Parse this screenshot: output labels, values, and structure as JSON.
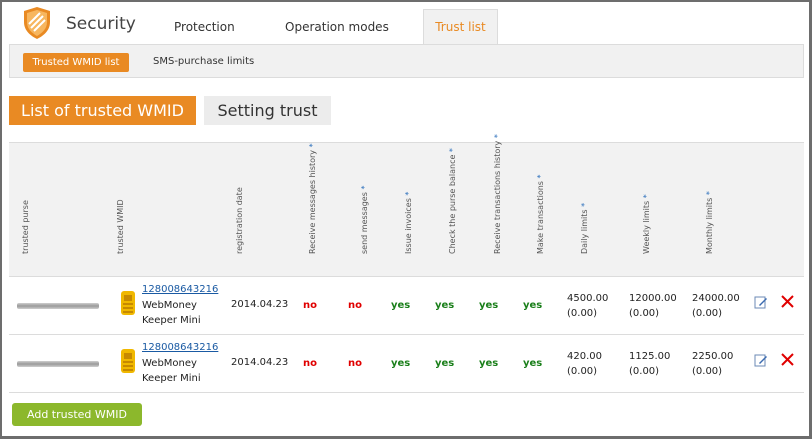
{
  "header": {
    "title": "Security",
    "tabs": [
      {
        "label": "Protection"
      },
      {
        "label": "Operation modes"
      },
      {
        "label": "Trust list"
      }
    ]
  },
  "subnav": {
    "items": [
      {
        "label": "Trusted WMID list"
      },
      {
        "label": "SMS-purchase limits"
      }
    ]
  },
  "section_buttons": {
    "list": "List of trusted WMID",
    "setting": "Setting trust"
  },
  "table": {
    "columns": {
      "trusted_purse": "trusted purse",
      "trusted_wmid": "trusted WMID",
      "registration_date": "registration date",
      "receive_messages": "Receive messages history",
      "send_messages": "send messages",
      "issue_invoices": "Issue invoices",
      "check_balance": "Check the purse balance",
      "receive_transactions": "Receive transactions history",
      "make_transactions": "Make transactions",
      "daily_limits": "Daily limits",
      "weekly_limits": "Weekly limits",
      "monthly_limits": "Monthly limits"
    },
    "star": "*",
    "rows": [
      {
        "wmid": "128008643216",
        "keeper": "WebMoney Keeper Mini",
        "reg_date": "2014.04.23",
        "receive_messages": "no",
        "send_messages": "no",
        "issue_invoices": "yes",
        "check_balance": "yes",
        "receive_transactions": "yes",
        "make_transactions": "yes",
        "daily": "4500.00",
        "daily_used": "(0.00)",
        "weekly": "12000.00",
        "weekly_used": "(0.00)",
        "monthly": "24000.00",
        "monthly_used": "(0.00)"
      },
      {
        "wmid": "128008643216",
        "keeper": "WebMoney Keeper Mini",
        "reg_date": "2014.04.23",
        "receive_messages": "no",
        "send_messages": "no",
        "issue_invoices": "yes",
        "check_balance": "yes",
        "receive_transactions": "yes",
        "make_transactions": "yes",
        "daily": "420.00",
        "daily_used": "(0.00)",
        "weekly": "1125.00",
        "weekly_used": "(0.00)",
        "monthly": "2250.00",
        "monthly_used": "(0.00)"
      }
    ]
  },
  "add_button": "Add trusted WMID",
  "icons": {
    "logo": "shield-icon",
    "wm": "webmoney-keeper-icon",
    "edit": "edit-icon",
    "delete": "delete-icon"
  },
  "colors": {
    "accent": "#e98a23",
    "green_button": "#8cb82c",
    "no": "#e00000",
    "yes": "#1a7f1a",
    "link": "#1a5aa3"
  }
}
